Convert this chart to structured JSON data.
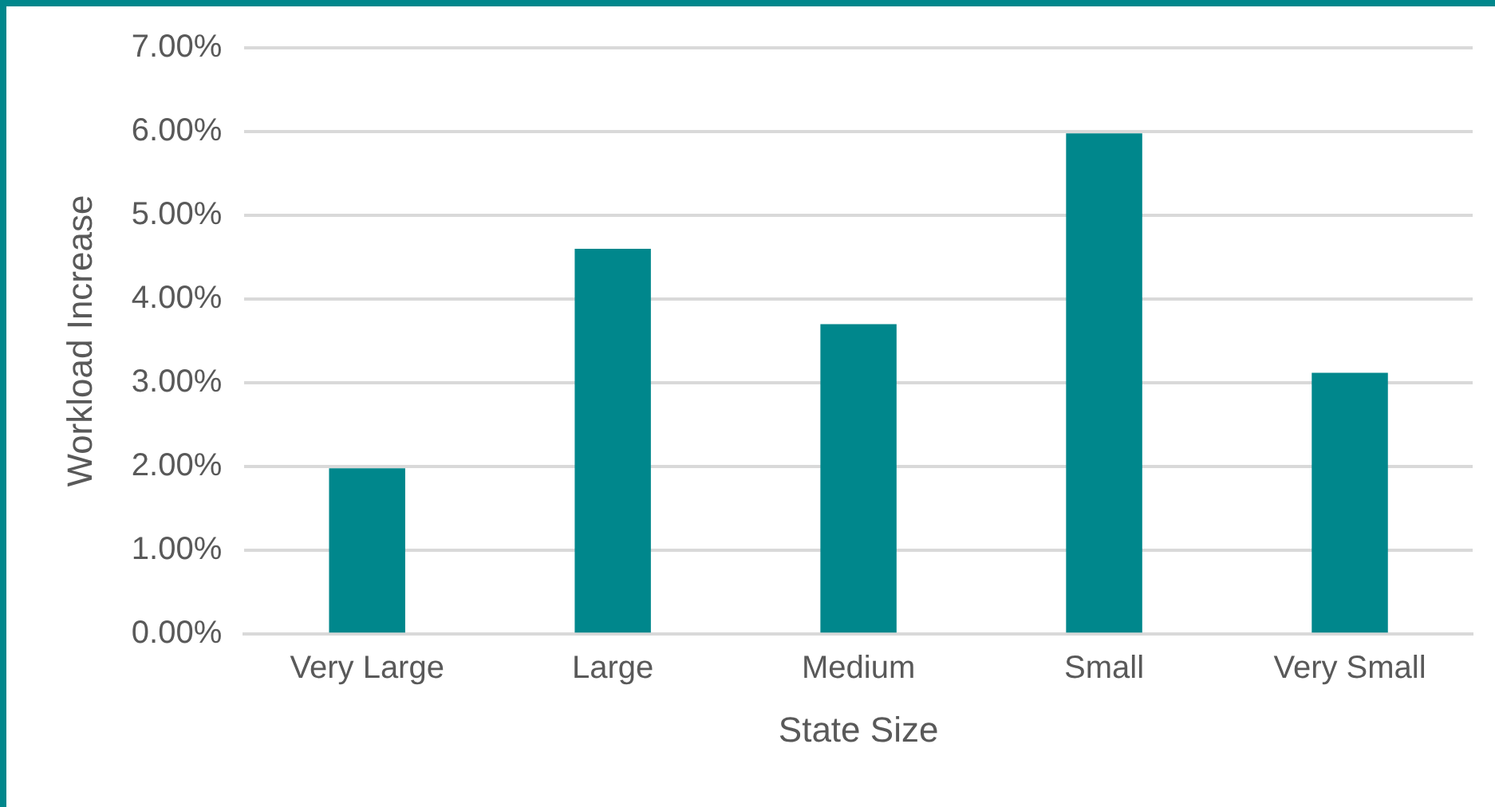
{
  "chart_data": {
    "type": "bar",
    "xlabel": "State Size",
    "ylabel": "Workload Increase",
    "categories": [
      "Very Large",
      "Large",
      "Medium",
      "Small",
      "Very Small"
    ],
    "values": [
      1.98,
      4.6,
      3.7,
      5.98,
      3.12
    ],
    "color": "#00878c",
    "ylim": [
      0,
      7
    ],
    "yticks": [
      {
        "value": 0,
        "label": "0.00%"
      },
      {
        "value": 1,
        "label": "1.00%"
      },
      {
        "value": 2,
        "label": "2.00%"
      },
      {
        "value": 3,
        "label": "3.00%"
      },
      {
        "value": 4,
        "label": "4.00%"
      },
      {
        "value": 5,
        "label": "5.00%"
      },
      {
        "value": 6,
        "label": "6.00%"
      },
      {
        "value": 7,
        "label": "7.00%"
      }
    ],
    "grid": "y",
    "legend": false
  }
}
